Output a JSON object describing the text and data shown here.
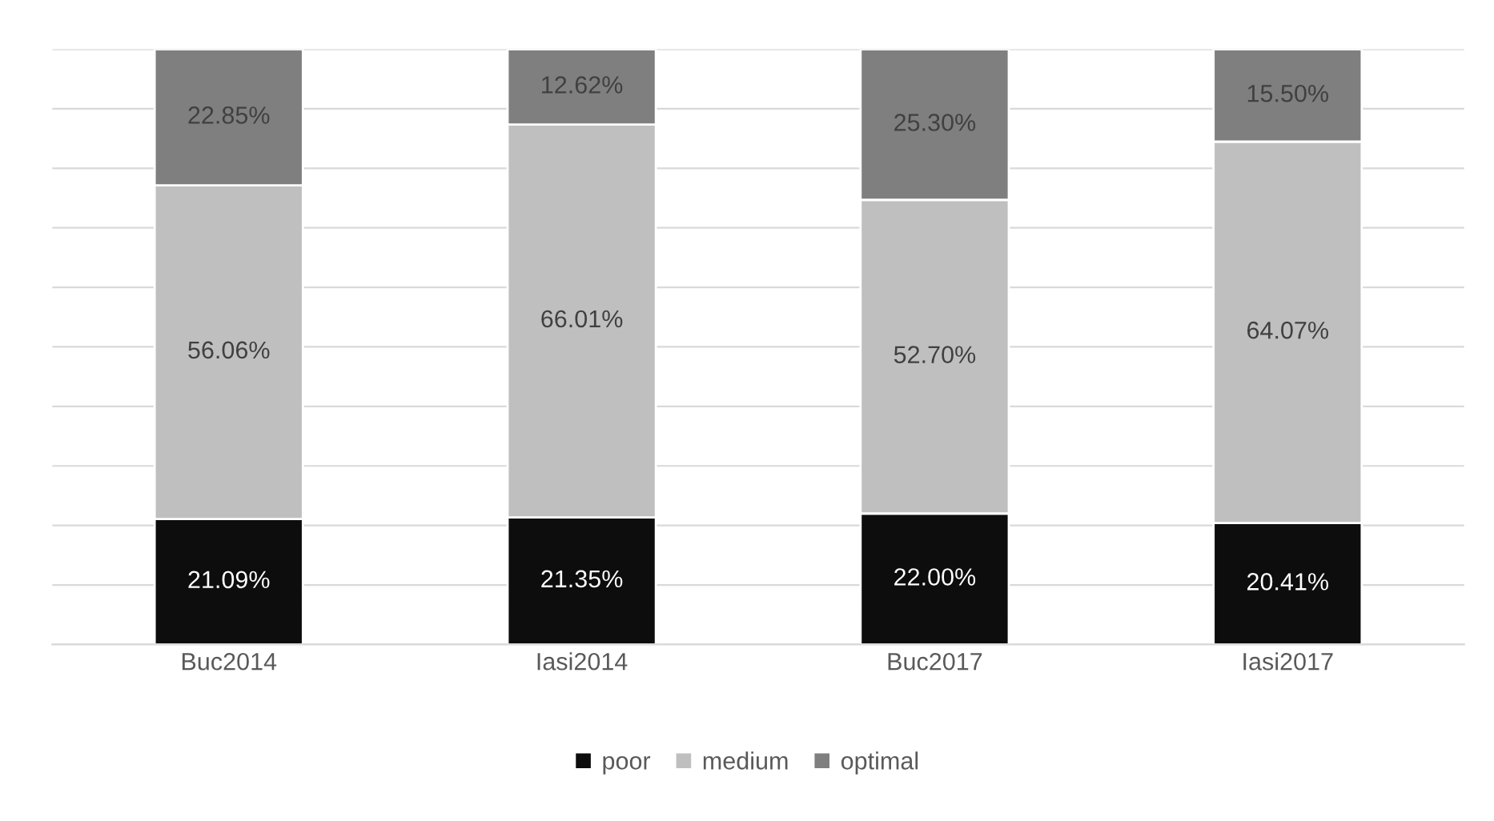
{
  "chart_data": {
    "type": "bar",
    "stacked": true,
    "categories": [
      "Buc2014",
      "Iasi2014",
      "Buc2017",
      "Iasi2017"
    ],
    "series": [
      {
        "name": "poor",
        "color": "#0d0d0d",
        "values": [
          21.09,
          21.35,
          22.0,
          20.41
        ],
        "value_labels": [
          "21.09%",
          "21.35%",
          "22.00%",
          "20.41%"
        ]
      },
      {
        "name": "medium",
        "color": "#bfbfbf",
        "values": [
          56.06,
          66.01,
          52.7,
          64.07
        ],
        "value_labels": [
          "56.06%",
          "66.01%",
          "52.70%",
          "64.07%"
        ]
      },
      {
        "name": "optimal",
        "color": "#7f7f7f",
        "values": [
          22.85,
          12.62,
          25.3,
          15.5
        ],
        "value_labels": [
          "22.85%",
          "12.62%",
          "25.30%",
          "15.50%"
        ]
      }
    ],
    "ylim": [
      0,
      100
    ],
    "yticks": [
      {
        "value": 0,
        "label": null
      },
      {
        "value": 10,
        "label": null
      },
      {
        "value": 20,
        "label": null
      },
      {
        "value": 30,
        "label": null
      },
      {
        "value": 40,
        "label": null
      },
      {
        "value": 50,
        "label": null
      },
      {
        "value": 60,
        "label": null
      },
      {
        "value": 70,
        "label": null
      },
      {
        "value": 80,
        "label": null
      },
      {
        "value": 90,
        "label": null
      },
      {
        "value": 100,
        "label": null
      }
    ],
    "grid": "y",
    "legend": "bottom"
  }
}
